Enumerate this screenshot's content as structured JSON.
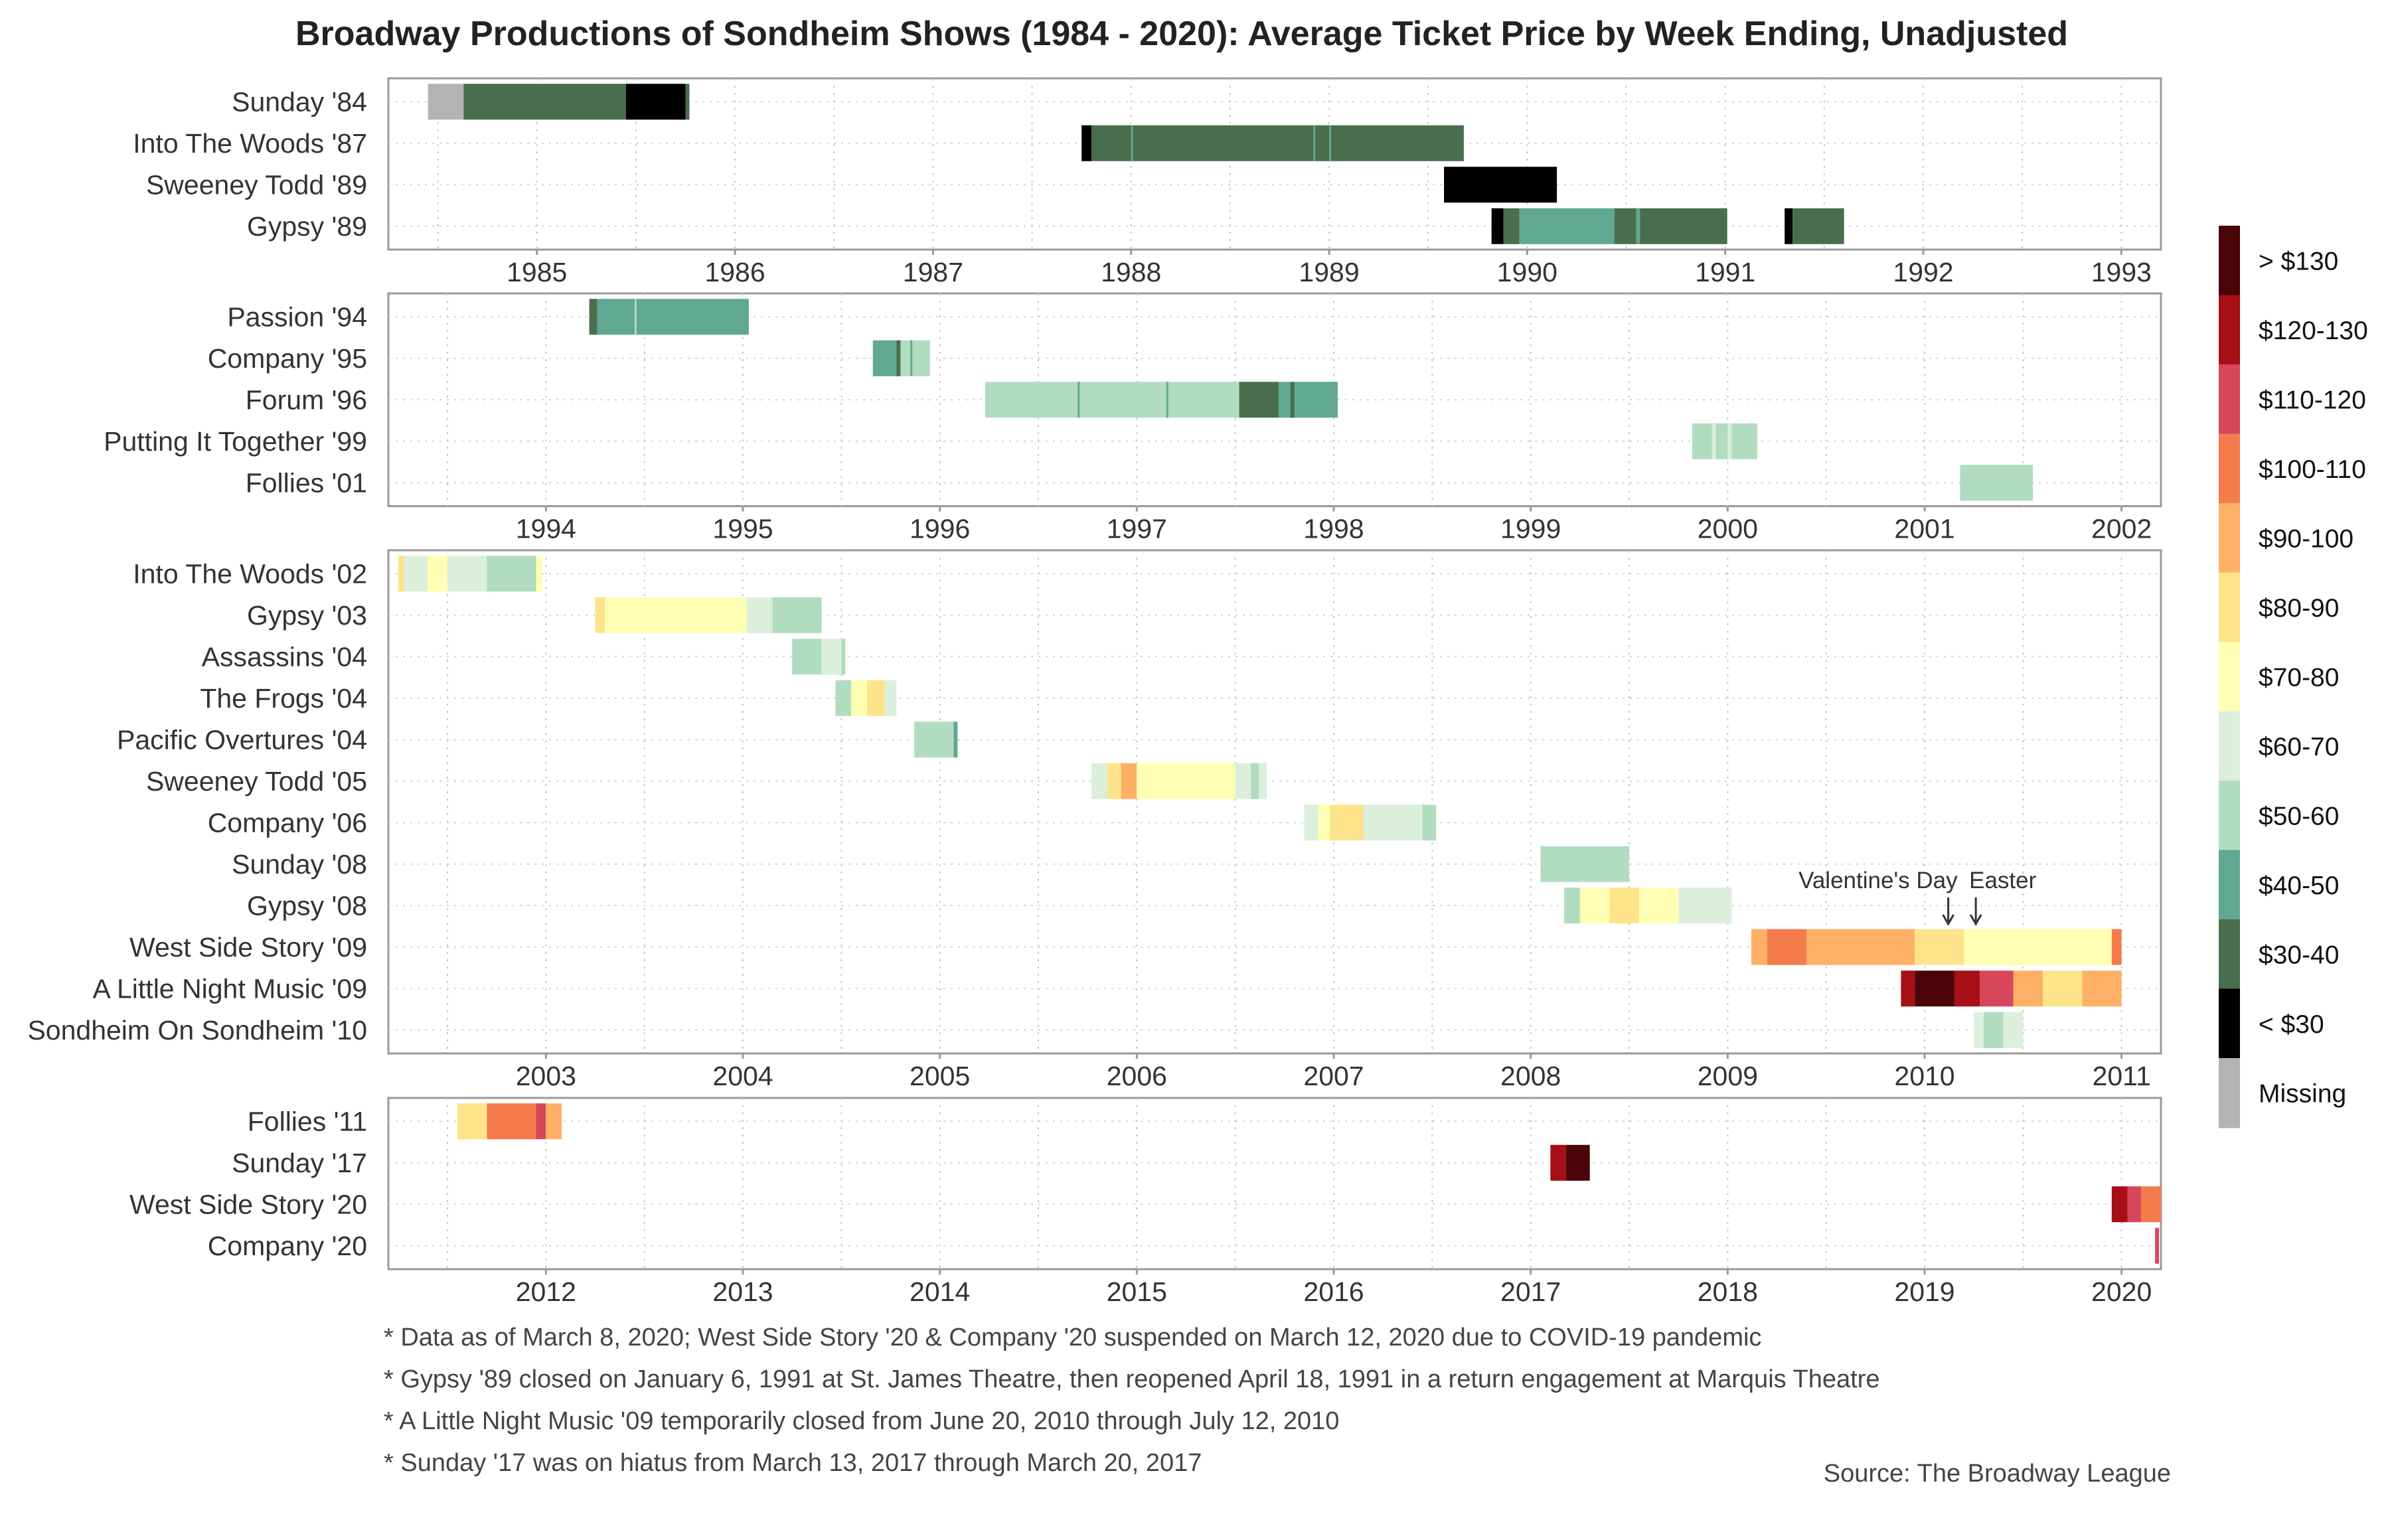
{
  "title": "Broadway Productions of Sondheim Shows (1984 - 2020): Average Ticket Price by Week Ending, Unadjusted",
  "colors": {
    "missing": "#b3b3b3",
    "lt30": "#000000",
    "30-40": "#4a6e4d",
    "40-50": "#60a891",
    "50-60": "#b2dcc0",
    "60-70": "#dcefdc",
    "70-80": "#ffffb3",
    "80-90": "#fde38a",
    "90-100": "#fdb066",
    "100-110": "#f57b4d",
    "110-120": "#d7465a",
    "120-130": "#a50f15",
    "gt130": "#4a0306"
  },
  "legend": {
    "items": [
      {
        "label": "> $130",
        "color_key": "gt130"
      },
      {
        "label": "$120-130",
        "color_key": "120-130"
      },
      {
        "label": "$110-120",
        "color_key": "110-120"
      },
      {
        "label": "$100-110",
        "color_key": "100-110"
      },
      {
        "label": "$90-100",
        "color_key": "90-100"
      },
      {
        "label": "$80-90",
        "color_key": "80-90"
      },
      {
        "label": "$70-80",
        "color_key": "70-80"
      },
      {
        "label": "$60-70",
        "color_key": "60-70"
      },
      {
        "label": "$50-60",
        "color_key": "50-60"
      },
      {
        "label": "$40-50",
        "color_key": "40-50"
      },
      {
        "label": "$30-40",
        "color_key": "30-40"
      },
      {
        "label": "< $30",
        "color_key": "lt30"
      },
      {
        "label": "Missing",
        "color_key": "missing"
      }
    ]
  },
  "annotations": [
    {
      "text": "Valentine's Day",
      "year": 2010.12
    },
    {
      "text": "Easter",
      "year": 2010.26
    }
  ],
  "notes": [
    "* Data as of March 8, 2020; West Side Story '20 & Company '20 suspended on March 12, 2020 due to COVID-19 pandemic",
    "* Gypsy '89 closed on January 6, 1991 at St. James Theatre, then reopened April 18, 1991 in a return engagement at Marquis Theatre",
    "* A Little Night Music '09 temporarily closed from June 20, 2010 through July 12, 2010",
    "* Sunday '17 was on hiatus from March 13, 2017 through March 20, 2017"
  ],
  "source": "Source: The Broadway League",
  "chart_data": {
    "type": "heatmap",
    "x_unit": "year",
    "panels": [
      {
        "xlim": [
          1984.25,
          1993.2
        ],
        "xticks": [
          "1985",
          "1986",
          "1987",
          "1988",
          "1989",
          "1990",
          "1991",
          "1992",
          "1993"
        ],
        "shows": [
          {
            "name": "Sunday '84",
            "segments": [
              [
                1984.45,
                1984.63,
                "missing"
              ],
              [
                1984.63,
                1985.45,
                "30-40"
              ],
              [
                1985.45,
                1985.75,
                "lt30"
              ],
              [
                1985.75,
                1985.77,
                "30-40"
              ]
            ]
          },
          {
            "name": "Into The Woods '87",
            "segments": [
              [
                1987.75,
                1987.8,
                "lt30"
              ],
              [
                1987.8,
                1989.68,
                "30-40"
              ],
              [
                1988.0,
                1988.01,
                "40-50"
              ],
              [
                1988.92,
                1988.93,
                "40-50"
              ],
              [
                1989.0,
                1989.01,
                "40-50"
              ]
            ]
          },
          {
            "name": "Sweeney Todd '89",
            "segments": [
              [
                1989.58,
                1990.15,
                "lt30"
              ]
            ]
          },
          {
            "name": "Gypsy '89",
            "segments": [
              [
                1989.82,
                1989.88,
                "lt30"
              ],
              [
                1989.88,
                1989.96,
                "30-40"
              ],
              [
                1989.96,
                1990.44,
                "40-50"
              ],
              [
                1990.44,
                1991.01,
                "30-40"
              ],
              [
                1990.55,
                1990.57,
                "40-50"
              ],
              [
                1991.3,
                1991.34,
                "lt30"
              ],
              [
                1991.34,
                1991.6,
                "30-40"
              ]
            ]
          }
        ]
      },
      {
        "xlim": [
          1993.2,
          2002.2
        ],
        "xticks": [
          "1994",
          "1995",
          "1996",
          "1997",
          "1998",
          "1999",
          "2000",
          "2001",
          "2002"
        ],
        "shows": [
          {
            "name": "Passion '94",
            "segments": [
              [
                1994.22,
                1994.26,
                "30-40"
              ],
              [
                1994.26,
                1995.03,
                "40-50"
              ],
              [
                1994.45,
                1994.46,
                "50-60"
              ]
            ]
          },
          {
            "name": "Company '95",
            "segments": [
              [
                1995.66,
                1995.8,
                "40-50"
              ],
              [
                1995.8,
                1995.95,
                "50-60"
              ],
              [
                1995.78,
                1995.8,
                "30-40"
              ],
              [
                1995.85,
                1995.86,
                "40-50"
              ]
            ]
          },
          {
            "name": "Forum '96",
            "segments": [
              [
                1996.23,
                1997.52,
                "50-60"
              ],
              [
                1996.7,
                1996.71,
                "40-50"
              ],
              [
                1997.15,
                1997.16,
                "40-50"
              ],
              [
                1997.52,
                1997.72,
                "30-40"
              ],
              [
                1997.72,
                1997.85,
                "40-50"
              ],
              [
                1997.78,
                1997.8,
                "30-40"
              ],
              [
                1997.85,
                1998.02,
                "40-50"
              ]
            ]
          },
          {
            "name": "Putting It Together '99",
            "segments": [
              [
                1999.82,
                2000.15,
                "50-60"
              ],
              [
                1999.92,
                1999.94,
                "60-70"
              ],
              [
                2000.0,
                2000.02,
                "60-70"
              ]
            ]
          },
          {
            "name": "Follies '01",
            "segments": [
              [
                2001.18,
                2001.55,
                "50-60"
              ]
            ]
          }
        ]
      },
      {
        "xlim": [
          2002.2,
          2011.2
        ],
        "xticks": [
          "2003",
          "2004",
          "2005",
          "2006",
          "2007",
          "2008",
          "2009",
          "2010",
          "2011"
        ],
        "shows": [
          {
            "name": "Into The Woods '02",
            "segments": [
              [
                2002.25,
                2002.28,
                "80-90"
              ],
              [
                2002.28,
                2002.4,
                "60-70"
              ],
              [
                2002.4,
                2002.5,
                "70-80"
              ],
              [
                2002.5,
                2002.7,
                "60-70"
              ],
              [
                2002.7,
                2002.95,
                "50-60"
              ],
              [
                2002.95,
                2002.98,
                "70-80"
              ]
            ]
          },
          {
            "name": "Gypsy '03",
            "segments": [
              [
                2003.25,
                2003.3,
                "80-90"
              ],
              [
                2003.3,
                2004.02,
                "70-80"
              ],
              [
                2004.02,
                2004.15,
                "60-70"
              ],
              [
                2004.15,
                2004.4,
                "50-60"
              ]
            ]
          },
          {
            "name": "Assassins '04",
            "segments": [
              [
                2004.25,
                2004.4,
                "50-60"
              ],
              [
                2004.4,
                2004.5,
                "60-70"
              ],
              [
                2004.5,
                2004.52,
                "50-60"
              ]
            ]
          },
          {
            "name": "The Frogs '04",
            "segments": [
              [
                2004.47,
                2004.55,
                "50-60"
              ],
              [
                2004.55,
                2004.63,
                "70-80"
              ],
              [
                2004.63,
                2004.72,
                "80-90"
              ],
              [
                2004.72,
                2004.78,
                "60-70"
              ]
            ]
          },
          {
            "name": "Pacific Overtures '04",
            "segments": [
              [
                2004.87,
                2005.07,
                "50-60"
              ],
              [
                2005.07,
                2005.09,
                "40-50"
              ]
            ]
          },
          {
            "name": "Sweeney Todd '05",
            "segments": [
              [
                2005.77,
                2005.85,
                "60-70"
              ],
              [
                2005.85,
                2005.92,
                "80-90"
              ],
              [
                2005.92,
                2006.0,
                "90-100"
              ],
              [
                2006.0,
                2006.5,
                "70-80"
              ],
              [
                2006.5,
                2006.66,
                "60-70"
              ],
              [
                2006.58,
                2006.62,
                "50-60"
              ]
            ]
          },
          {
            "name": "Company '06",
            "segments": [
              [
                2006.85,
                2006.92,
                "60-70"
              ],
              [
                2006.92,
                2006.98,
                "70-80"
              ],
              [
                2006.98,
                2007.15,
                "80-90"
              ],
              [
                2007.15,
                2007.45,
                "60-70"
              ],
              [
                2007.45,
                2007.52,
                "50-60"
              ]
            ]
          },
          {
            "name": "Sunday '08",
            "segments": [
              [
                2008.05,
                2008.5,
                "50-60"
              ]
            ]
          },
          {
            "name": "Gypsy '08",
            "segments": [
              [
                2008.17,
                2008.25,
                "50-60"
              ],
              [
                2008.25,
                2008.4,
                "70-80"
              ],
              [
                2008.4,
                2008.55,
                "80-90"
              ],
              [
                2008.55,
                2008.75,
                "70-80"
              ],
              [
                2008.75,
                2009.02,
                "60-70"
              ]
            ]
          },
          {
            "name": "West Side Story '09",
            "segments": [
              [
                2009.12,
                2009.2,
                "90-100"
              ],
              [
                2009.2,
                2009.4,
                "100-110"
              ],
              [
                2009.4,
                2009.5,
                "90-100"
              ],
              [
                2009.5,
                2009.95,
                "90-100"
              ],
              [
                2009.95,
                2010.2,
                "80-90"
              ],
              [
                2010.2,
                2010.95,
                "70-80"
              ],
              [
                2010.95,
                2011.0,
                "100-110"
              ]
            ]
          },
          {
            "name": "A Little Night Music '09",
            "segments": [
              [
                2009.88,
                2009.95,
                "120-130"
              ],
              [
                2009.95,
                2010.15,
                "gt130"
              ],
              [
                2010.15,
                2010.28,
                "120-130"
              ],
              [
                2010.28,
                2010.45,
                "110-120"
              ],
              [
                2010.45,
                2010.6,
                "90-100"
              ],
              [
                2010.6,
                2010.65,
                "80-90"
              ],
              [
                2010.65,
                2010.8,
                "80-90"
              ],
              [
                2010.8,
                2011.0,
                "90-100"
              ]
            ]
          },
          {
            "name": "Sondheim On Sondheim '10",
            "segments": [
              [
                2010.25,
                2010.5,
                "60-70"
              ],
              [
                2010.3,
                2010.4,
                "50-60"
              ]
            ]
          }
        ]
      },
      {
        "xlim": [
          2011.2,
          2020.2
        ],
        "xticks": [
          "2012",
          "2013",
          "2014",
          "2015",
          "2016",
          "2017",
          "2018",
          "2019",
          "2020"
        ],
        "shows": [
          {
            "name": "Follies '11",
            "segments": [
              [
                2011.55,
                2011.7,
                "80-90"
              ],
              [
                2011.7,
                2011.95,
                "100-110"
              ],
              [
                2011.95,
                2012.0,
                "110-120"
              ],
              [
                2012.0,
                2012.08,
                "90-100"
              ]
            ]
          },
          {
            "name": "Sunday '17",
            "segments": [
              [
                2017.1,
                2017.18,
                "120-130"
              ],
              [
                2017.18,
                2017.3,
                "gt130"
              ]
            ]
          },
          {
            "name": "West Side Story '20",
            "segments": [
              [
                2019.95,
                2020.03,
                "120-130"
              ],
              [
                2020.03,
                2020.1,
                "110-120"
              ],
              [
                2020.1,
                2020.2,
                "100-110"
              ]
            ]
          },
          {
            "name": "Company '20",
            "segments": [
              [
                2020.17,
                2020.19,
                "110-120"
              ]
            ]
          }
        ]
      }
    ]
  }
}
